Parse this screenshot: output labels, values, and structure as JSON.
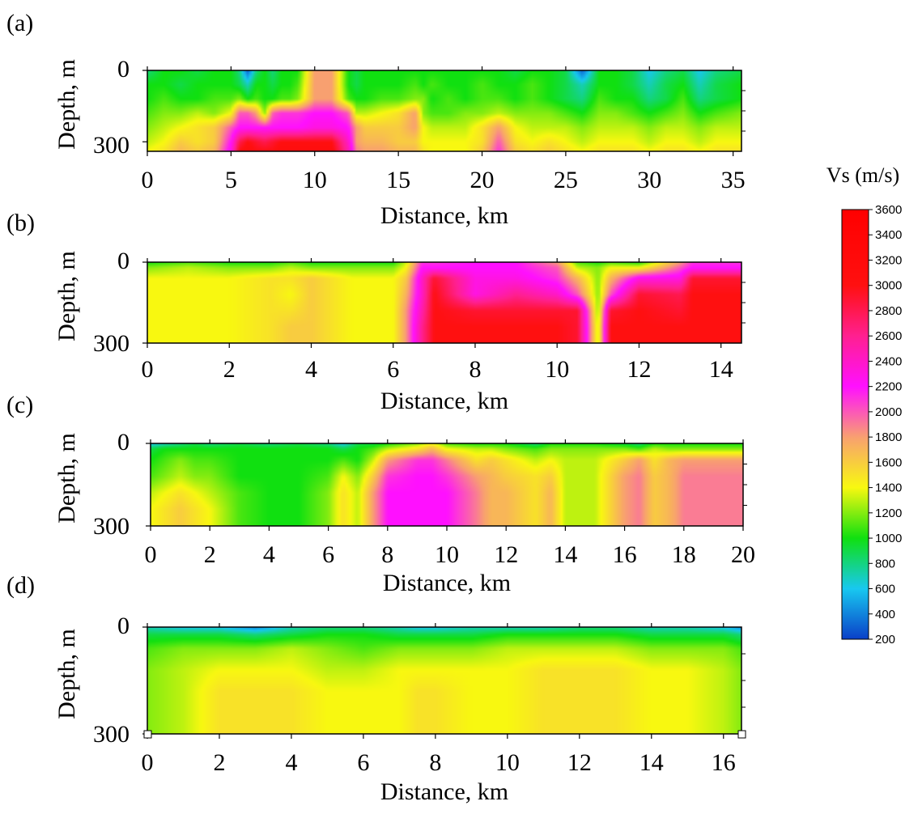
{
  "figure": {
    "colorbar": {
      "title": "Vs (m/s)",
      "min": 200,
      "max": 3600,
      "ticks": [
        3600,
        3400,
        3200,
        3000,
        2800,
        2600,
        2400,
        2200,
        2000,
        1800,
        1600,
        1400,
        1200,
        1000,
        800,
        600,
        400,
        200
      ],
      "color_stops": [
        {
          "value": 200,
          "color": "#0a3fc8"
        },
        {
          "value": 600,
          "color": "#18c8f0"
        },
        {
          "value": 1000,
          "color": "#10e010"
        },
        {
          "value": 1400,
          "color": "#f8f810"
        },
        {
          "value": 1800,
          "color": "#f8a070"
        },
        {
          "value": 2200,
          "color": "#ff10ff"
        },
        {
          "value": 2600,
          "color": "#ff2090"
        },
        {
          "value": 3000,
          "color": "#ff1010"
        },
        {
          "value": 3600,
          "color": "#ff0000"
        }
      ]
    }
  },
  "chart_data": [
    {
      "type": "heatmap",
      "panel": "(a)",
      "xlabel": "Distance, km",
      "ylabel": "Depth, m",
      "xlim": [
        0,
        35.5
      ],
      "ylim": [
        0,
        340
      ],
      "xticks": [
        0,
        5,
        10,
        15,
        20,
        25,
        30,
        35
      ],
      "yticks": [
        0,
        300
      ],
      "profile_x": [
        0,
        1,
        2,
        3,
        4,
        5,
        5.5,
        6,
        6.5,
        7,
        7.5,
        8,
        8.5,
        9,
        10,
        11,
        12,
        12.5,
        13,
        14,
        15,
        16,
        16.5,
        17,
        18,
        19,
        20,
        21,
        22,
        23,
        24,
        25,
        26,
        27,
        28,
        29,
        30,
        31,
        32,
        33,
        34,
        35.5
      ],
      "profile_depth": [
        0,
        60,
        120,
        180,
        240,
        300,
        340
      ],
      "vs": [
        [
          800,
          1000,
          1000,
          900,
          1000,
          1000,
          800,
          300,
          800,
          1000,
          800,
          1000,
          1000,
          1000,
          1800,
          1800,
          1000,
          900,
          1000,
          1000,
          1000,
          1000,
          1000,
          1000,
          1000,
          1000,
          1000,
          1000,
          900,
          1000,
          1000,
          900,
          300,
          1000,
          1000,
          900,
          600,
          800,
          900,
          600,
          800,
          900
        ],
        [
          1000,
          1000,
          900,
          1000,
          1000,
          1000,
          900,
          700,
          1000,
          1000,
          900,
          1000,
          1000,
          1100,
          1800,
          1800,
          1000,
          900,
          1000,
          1000,
          1000,
          1100,
          1000,
          1100,
          1000,
          1000,
          1100,
          1000,
          1000,
          1100,
          1000,
          900,
          700,
          1000,
          1000,
          900,
          700,
          900,
          1000,
          700,
          900,
          1000
        ],
        [
          1000,
          1100,
          1000,
          1000,
          1100,
          1100,
          1200,
          1000,
          1100,
          1000,
          1000,
          1100,
          1100,
          1200,
          1800,
          1800,
          1100,
          1000,
          1000,
          1100,
          1100,
          1200,
          1200,
          1000,
          1100,
          1000,
          1100,
          1100,
          1000,
          1100,
          1000,
          900,
          800,
          1100,
          1000,
          1000,
          800,
          900,
          1100,
          800,
          900,
          1000
        ],
        [
          1100,
          1200,
          1200,
          1300,
          1200,
          1400,
          2000,
          2000,
          1800,
          1200,
          2000,
          2100,
          2100,
          2100,
          2200,
          2200,
          2000,
          1300,
          1300,
          1400,
          1500,
          1800,
          1200,
          1100,
          1100,
          1200,
          1200,
          1300,
          1200,
          1200,
          1200,
          1100,
          1000,
          1200,
          1200,
          1100,
          1000,
          1100,
          1200,
          1000,
          1100,
          1200
        ],
        [
          1200,
          1300,
          1400,
          1500,
          1600,
          2000,
          2200,
          2200,
          2200,
          2200,
          2200,
          2200,
          2200,
          2200,
          2300,
          2300,
          2200,
          1800,
          1600,
          1600,
          1600,
          1800,
          1400,
          1300,
          1300,
          1300,
          1500,
          1800,
          1400,
          1300,
          1300,
          1300,
          1200,
          1300,
          1300,
          1300,
          1200,
          1300,
          1300,
          1200,
          1300,
          1300
        ],
        [
          1300,
          1400,
          1600,
          1500,
          1600,
          2200,
          2800,
          3000,
          2900,
          2800,
          2900,
          3000,
          3000,
          3000,
          3000,
          3000,
          2400,
          1800,
          1700,
          1700,
          1600,
          1600,
          1400,
          1400,
          1400,
          1400,
          1500,
          2000,
          1500,
          1400,
          1500,
          1400,
          1300,
          1400,
          1400,
          1400,
          1300,
          1400,
          1400,
          1300,
          1400,
          1400
        ],
        [
          1400,
          1500,
          1700,
          1600,
          1700,
          2300,
          3000,
          3100,
          3000,
          3000,
          3000,
          3100,
          3100,
          3100,
          3100,
          3100,
          2500,
          1900,
          1800,
          1800,
          1700,
          1700,
          1500,
          1400,
          1400,
          1400,
          1600,
          2100,
          1600,
          1500,
          1600,
          1500,
          1400,
          1500,
          1500,
          1500,
          1400,
          1500,
          1500,
          1400,
          1500,
          1500
        ]
      ]
    },
    {
      "type": "heatmap",
      "panel": "(b)",
      "xlabel": "Distance, km",
      "ylabel": "Depth, m",
      "xlim": [
        0,
        14.5
      ],
      "ylim": [
        0,
        300
      ],
      "xticks": [
        0,
        2,
        4,
        6,
        8,
        10,
        12,
        14
      ],
      "yticks": [
        0,
        300
      ],
      "profile_x": [
        0,
        1,
        2,
        3,
        3.5,
        4,
        5,
        6,
        6.3,
        6.7,
        7,
        8,
        9,
        10,
        10.5,
        11,
        11.3,
        12,
        13,
        13.3,
        14,
        14.5
      ],
      "profile_depth": [
        0,
        20,
        60,
        120,
        180,
        240,
        300
      ],
      "vs": [
        [
          1000,
          1100,
          1000,
          1000,
          1100,
          1000,
          1000,
          1000,
          1300,
          2100,
          2100,
          2200,
          2200,
          1800,
          1100,
          1000,
          1100,
          1000,
          1800,
          2100,
          2100,
          2100
        ],
        [
          1200,
          1300,
          1200,
          1200,
          1300,
          1200,
          1200,
          1200,
          1400,
          2200,
          2200,
          2200,
          2200,
          2000,
          1300,
          1200,
          1400,
          1400,
          2000,
          2200,
          2200,
          2200
        ],
        [
          1400,
          1400,
          1400,
          1500,
          1500,
          1600,
          1400,
          1400,
          1600,
          2400,
          2900,
          2300,
          2300,
          2100,
          1700,
          1200,
          1700,
          2300,
          2300,
          2900,
          2900,
          2900
        ],
        [
          1400,
          1400,
          1400,
          1500,
          1400,
          1600,
          1400,
          1400,
          1700,
          2400,
          3000,
          2300,
          2600,
          2400,
          2000,
          1200,
          2000,
          2900,
          2800,
          3000,
          3000,
          3000
        ],
        [
          1400,
          1400,
          1400,
          1500,
          1500,
          1600,
          1400,
          1400,
          1800,
          2500,
          3000,
          2900,
          2900,
          2900,
          2900,
          1200,
          2900,
          3000,
          2900,
          3000,
          3000,
          3000
        ],
        [
          1400,
          1400,
          1400,
          1500,
          1600,
          1600,
          1400,
          1400,
          1800,
          2600,
          3000,
          3000,
          3000,
          3000,
          2900,
          1300,
          3000,
          3000,
          3000,
          3000,
          3000,
          3000
        ],
        [
          1400,
          1400,
          1400,
          1500,
          1600,
          1600,
          1400,
          1400,
          1800,
          2600,
          3000,
          3000,
          3000,
          3000,
          2900,
          1300,
          3000,
          3000,
          3000,
          3000,
          3000,
          3000
        ]
      ]
    },
    {
      "type": "heatmap",
      "panel": "(c)",
      "xlabel": "Distance, km",
      "ylabel": "Depth, m",
      "xlim": [
        0,
        20
      ],
      "ylim": [
        0,
        300
      ],
      "xticks": [
        0,
        2,
        4,
        6,
        8,
        10,
        12,
        14,
        16,
        18,
        20
      ],
      "yticks": [
        0,
        300
      ],
      "profile_x": [
        0,
        0.5,
        1,
        1.5,
        2,
        3,
        4,
        5,
        6,
        6.5,
        7,
        7.5,
        8,
        9,
        9.5,
        10,
        11,
        11.5,
        12,
        13,
        13.5,
        14,
        15,
        16,
        16.5,
        17,
        17.5,
        18,
        19,
        20
      ],
      "profile_depth": [
        0,
        20,
        60,
        120,
        180,
        240,
        300
      ],
      "vs": [
        [
          600,
          700,
          800,
          900,
          800,
          900,
          800,
          900,
          800,
          600,
          900,
          900,
          1000,
          1200,
          1400,
          1100,
          1000,
          1000,
          1000,
          800,
          1000,
          1000,
          1000,
          900,
          800,
          1000,
          1000,
          1000,
          1000,
          1000
        ],
        [
          900,
          1000,
          1000,
          1000,
          1000,
          1000,
          1000,
          1000,
          1000,
          900,
          1000,
          1100,
          1300,
          1500,
          1700,
          1400,
          1300,
          1300,
          1200,
          1100,
          1200,
          1200,
          1200,
          1200,
          1100,
          1300,
          1200,
          1200,
          1200,
          1200
        ],
        [
          1000,
          1100,
          1200,
          1100,
          1100,
          1000,
          1000,
          1000,
          1000,
          1100,
          1000,
          1300,
          1800,
          2100,
          2100,
          1900,
          1500,
          1600,
          1500,
          1300,
          1400,
          1300,
          1300,
          1600,
          1800,
          1500,
          1700,
          1800,
          1800,
          1800
        ],
        [
          1100,
          1200,
          1300,
          1200,
          1200,
          1000,
          1000,
          1000,
          1100,
          1400,
          1200,
          1600,
          2100,
          2200,
          2200,
          2100,
          1800,
          1700,
          1600,
          1500,
          1600,
          1300,
          1300,
          1800,
          1900,
          1600,
          1700,
          1900,
          1900,
          1900
        ],
        [
          1300,
          1400,
          1500,
          1400,
          1300,
          1100,
          1000,
          1000,
          1200,
          1500,
          1300,
          1800,
          2200,
          2200,
          2200,
          2200,
          1900,
          1700,
          1700,
          1500,
          1700,
          1300,
          1300,
          1800,
          1900,
          1600,
          1700,
          1900,
          1900,
          1900
        ],
        [
          1400,
          1500,
          1600,
          1500,
          1400,
          1100,
          1000,
          1000,
          1200,
          1500,
          1300,
          1800,
          2200,
          2200,
          2200,
          2200,
          1900,
          1700,
          1700,
          1500,
          1700,
          1300,
          1300,
          1800,
          1900,
          1600,
          1700,
          1900,
          1900,
          1900
        ],
        [
          1400,
          1500,
          1600,
          1500,
          1400,
          1100,
          1000,
          1000,
          1200,
          1500,
          1300,
          1800,
          2200,
          2200,
          2200,
          2200,
          1900,
          1700,
          1700,
          1500,
          1700,
          1300,
          1300,
          1800,
          1900,
          1600,
          1700,
          1900,
          1900,
          1900
        ]
      ]
    },
    {
      "type": "heatmap",
      "panel": "(d)",
      "xlabel": "Distance, km",
      "ylabel": "Depth, m",
      "xlim": [
        0,
        16.5
      ],
      "ylim": [
        0,
        300
      ],
      "xticks": [
        0,
        2,
        4,
        6,
        8,
        10,
        12,
        14,
        16
      ],
      "yticks": [
        0,
        300
      ],
      "profile_x": [
        0,
        1,
        2,
        3,
        4,
        5,
        6,
        7,
        7.5,
        8,
        9,
        10,
        11,
        12,
        13,
        14,
        15,
        16,
        16.5
      ],
      "profile_depth": [
        0,
        20,
        60,
        120,
        180,
        240,
        300
      ],
      "vs": [
        [
          700,
          600,
          600,
          400,
          700,
          800,
          800,
          700,
          600,
          600,
          700,
          700,
          700,
          800,
          800,
          700,
          700,
          600,
          400
        ],
        [
          900,
          900,
          900,
          800,
          900,
          1000,
          1000,
          900,
          900,
          900,
          900,
          1000,
          1000,
          1000,
          1000,
          900,
          900,
          900,
          800
        ],
        [
          1100,
          1200,
          1200,
          1200,
          1300,
          1200,
          1100,
          1200,
          1200,
          1200,
          1200,
          1300,
          1300,
          1300,
          1300,
          1200,
          1200,
          1200,
          1100
        ],
        [
          1200,
          1300,
          1400,
          1400,
          1400,
          1300,
          1300,
          1400,
          1400,
          1400,
          1400,
          1400,
          1500,
          1500,
          1500,
          1400,
          1400,
          1300,
          1200
        ],
        [
          1200,
          1300,
          1500,
          1500,
          1500,
          1400,
          1400,
          1400,
          1500,
          1500,
          1400,
          1400,
          1500,
          1500,
          1500,
          1400,
          1400,
          1300,
          1200
        ],
        [
          1200,
          1300,
          1500,
          1500,
          1500,
          1400,
          1400,
          1400,
          1500,
          1500,
          1400,
          1400,
          1500,
          1500,
          1500,
          1400,
          1400,
          1300,
          1200
        ],
        [
          1200,
          1300,
          1500,
          1500,
          1500,
          1400,
          1400,
          1400,
          1500,
          1500,
          1400,
          1400,
          1500,
          1500,
          1500,
          1400,
          1400,
          1300,
          1200
        ]
      ]
    }
  ]
}
